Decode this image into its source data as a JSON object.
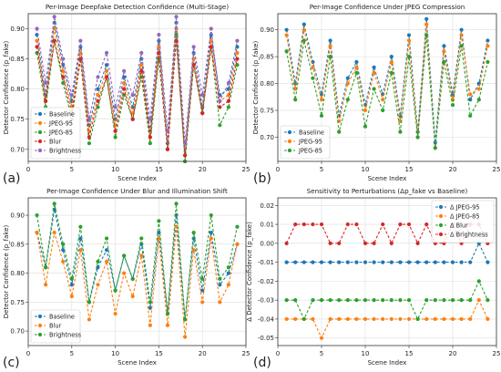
{
  "figure": {
    "panel_letters": [
      "(a)",
      "(b)",
      "(c)",
      "(d)"
    ]
  },
  "chart_data": [
    {
      "type": "line",
      "title": "Per-Image Deepfake Detection Confidence (Multi-Stage)",
      "xlabel": "Scene Index",
      "ylabel": "Detector Confidence (p_fake)",
      "xlim": [
        0,
        25
      ],
      "ylim": [
        0.68,
        0.925
      ],
      "xticks": [
        0,
        5,
        10,
        15,
        20,
        25
      ],
      "yticks": [
        0.7,
        0.75,
        0.8,
        0.85,
        0.9
      ],
      "grid": true,
      "legend": "bottom-left",
      "x": [
        1,
        2,
        3,
        4,
        5,
        6,
        7,
        8,
        9,
        10,
        11,
        12,
        13,
        14,
        15,
        16,
        17,
        18,
        19,
        20,
        21,
        22,
        23,
        24
      ],
      "series": [
        {
          "name": "Baseline",
          "color": "#1f77b4",
          "values": [
            0.89,
            0.79,
            0.91,
            0.84,
            0.78,
            0.87,
            0.74,
            0.8,
            0.84,
            0.75,
            0.82,
            0.77,
            0.85,
            0.73,
            0.88,
            0.71,
            0.91,
            0.69,
            0.86,
            0.77,
            0.89,
            0.79,
            0.8,
            0.87
          ]
        },
        {
          "name": "JPEG-95",
          "color": "#ff7f0e",
          "values": [
            0.88,
            0.78,
            0.9,
            0.83,
            0.77,
            0.86,
            0.73,
            0.79,
            0.83,
            0.74,
            0.81,
            0.76,
            0.84,
            0.72,
            0.87,
            0.7,
            0.9,
            0.68,
            0.85,
            0.76,
            0.88,
            0.78,
            0.79,
            0.86
          ]
        },
        {
          "name": "JPEG-85",
          "color": "#2ca02c",
          "values": [
            0.86,
            0.77,
            0.88,
            0.81,
            0.75,
            0.85,
            0.71,
            0.77,
            0.82,
            0.72,
            0.79,
            0.75,
            0.82,
            0.71,
            0.85,
            0.7,
            0.89,
            0.68,
            0.84,
            0.76,
            0.87,
            0.74,
            0.77,
            0.84
          ]
        },
        {
          "name": "Blur",
          "color": "#d62728",
          "values": [
            0.87,
            0.78,
            0.88,
            0.82,
            0.76,
            0.85,
            0.72,
            0.78,
            0.82,
            0.73,
            0.8,
            0.75,
            0.83,
            0.72,
            0.86,
            0.7,
            0.88,
            0.69,
            0.84,
            0.76,
            0.87,
            0.77,
            0.78,
            0.85
          ]
        },
        {
          "name": "Brightness",
          "color": "#9467bd",
          "values": [
            0.9,
            0.81,
            0.92,
            0.85,
            0.79,
            0.88,
            0.75,
            0.82,
            0.86,
            0.77,
            0.83,
            0.79,
            0.86,
            0.75,
            0.89,
            0.73,
            0.92,
            0.71,
            0.87,
            0.79,
            0.9,
            0.78,
            0.81,
            0.88
          ]
        }
      ]
    },
    {
      "type": "line",
      "title": "Per-Image Confidence Under JPEG Compression",
      "xlabel": "Scene Index",
      "ylabel": "Detector Confidence (p_fake)",
      "xlim": [
        0,
        25
      ],
      "ylim": [
        0.655,
        0.93
      ],
      "xticks": [
        0,
        5,
        10,
        15,
        20,
        25
      ],
      "yticks": [
        0.7,
        0.75,
        0.8,
        0.85,
        0.9
      ],
      "grid": true,
      "legend": "bottom-left",
      "x": [
        1,
        2,
        3,
        4,
        5,
        6,
        7,
        8,
        9,
        10,
        11,
        12,
        13,
        14,
        15,
        16,
        17,
        18,
        19,
        20,
        21,
        22,
        23,
        24
      ],
      "series": [
        {
          "name": "Baseline",
          "color": "#1f77b4",
          "values": [
            0.9,
            0.8,
            0.91,
            0.84,
            0.78,
            0.88,
            0.74,
            0.81,
            0.84,
            0.76,
            0.83,
            0.78,
            0.85,
            0.74,
            0.89,
            0.71,
            0.92,
            0.69,
            0.87,
            0.78,
            0.9,
            0.77,
            0.8,
            0.88
          ]
        },
        {
          "name": "JPEG-95",
          "color": "#ff7f0e",
          "values": [
            0.89,
            0.79,
            0.9,
            0.83,
            0.77,
            0.87,
            0.73,
            0.8,
            0.83,
            0.75,
            0.82,
            0.77,
            0.84,
            0.73,
            0.88,
            0.7,
            0.91,
            0.68,
            0.86,
            0.77,
            0.89,
            0.78,
            0.79,
            0.87
          ]
        },
        {
          "name": "JPEG-85",
          "color": "#2ca02c",
          "values": [
            0.86,
            0.77,
            0.88,
            0.81,
            0.74,
            0.85,
            0.71,
            0.77,
            0.82,
            0.72,
            0.79,
            0.75,
            0.82,
            0.71,
            0.85,
            0.7,
            0.89,
            0.68,
            0.84,
            0.76,
            0.87,
            0.74,
            0.77,
            0.84
          ]
        }
      ]
    },
    {
      "type": "line",
      "title": "Per-Image Confidence Under Blur and Illumination Shift",
      "xlabel": "Scene Index",
      "ylabel": "Detector Confidence (p_fake)",
      "xlim": [
        0,
        25
      ],
      "ylim": [
        0.675,
        0.93
      ],
      "xticks": [
        0,
        5,
        10,
        15,
        20,
        25
      ],
      "yticks": [
        0.7,
        0.75,
        0.8,
        0.85,
        0.9
      ],
      "grid": true,
      "legend": "bottom-left",
      "x": [
        1,
        2,
        3,
        4,
        5,
        6,
        7,
        8,
        9,
        10,
        11,
        12,
        13,
        14,
        15,
        16,
        17,
        18,
        19,
        20,
        21,
        22,
        23,
        24
      ],
      "series": [
        {
          "name": "Baseline",
          "color": "#1f77b4",
          "values": [
            0.87,
            0.81,
            0.91,
            0.84,
            0.78,
            0.86,
            0.75,
            0.81,
            0.84,
            0.77,
            0.83,
            0.79,
            0.85,
            0.74,
            0.87,
            0.73,
            0.9,
            0.72,
            0.86,
            0.77,
            0.87,
            0.78,
            0.8,
            0.85
          ]
        },
        {
          "name": "Blur",
          "color": "#ff7f0e",
          "values": [
            0.87,
            0.78,
            0.87,
            0.82,
            0.76,
            0.84,
            0.72,
            0.78,
            0.82,
            0.73,
            0.8,
            0.76,
            0.83,
            0.71,
            0.86,
            0.71,
            0.88,
            0.69,
            0.84,
            0.75,
            0.86,
            0.75,
            0.78,
            0.85
          ]
        },
        {
          "name": "Brightness",
          "color": "#2ca02c",
          "values": [
            0.9,
            0.81,
            0.92,
            0.85,
            0.79,
            0.88,
            0.75,
            0.82,
            0.86,
            0.77,
            0.83,
            0.79,
            0.86,
            0.75,
            0.89,
            0.73,
            0.92,
            0.72,
            0.87,
            0.79,
            0.9,
            0.79,
            0.81,
            0.88
          ]
        }
      ]
    },
    {
      "type": "line",
      "title": "Sensitivity to Perturbations (Δp_fake vs Baseline)",
      "xlabel": "Scene Index",
      "ylabel": "Δ Detector Confidence (p_fake)",
      "xlim": [
        0,
        25
      ],
      "ylim": [
        -0.054,
        0.024
      ],
      "xticks": [
        0,
        5,
        10,
        15,
        20,
        25
      ],
      "yticks": [
        -0.05,
        -0.04,
        -0.03,
        -0.02,
        -0.01,
        0.0,
        0.01,
        0.02
      ],
      "grid": true,
      "legend": "top-right",
      "x": [
        1,
        2,
        3,
        4,
        5,
        6,
        7,
        8,
        9,
        10,
        11,
        12,
        13,
        14,
        15,
        16,
        17,
        18,
        19,
        20,
        21,
        22,
        23,
        24
      ],
      "series": [
        {
          "name": "Δ JPEG-95",
          "color": "#1f77b4",
          "values": [
            -0.01,
            -0.01,
            -0.01,
            -0.01,
            -0.01,
            -0.01,
            -0.01,
            -0.01,
            -0.01,
            -0.01,
            -0.01,
            -0.01,
            -0.01,
            -0.01,
            -0.01,
            -0.01,
            -0.01,
            -0.01,
            -0.01,
            -0.01,
            -0.01,
            -0.01,
            0.0,
            -0.01
          ]
        },
        {
          "name": "Δ JPEG-85",
          "color": "#ff7f0e",
          "values": [
            -0.04,
            -0.04,
            -0.04,
            -0.04,
            -0.05,
            -0.04,
            -0.04,
            -0.04,
            -0.04,
            -0.04,
            -0.04,
            -0.04,
            -0.04,
            -0.04,
            -0.04,
            -0.04,
            -0.04,
            -0.04,
            -0.04,
            -0.04,
            -0.04,
            -0.04,
            -0.03,
            -0.04
          ]
        },
        {
          "name": "Δ Blur",
          "color": "#2ca02c",
          "values": [
            -0.03,
            -0.03,
            -0.04,
            -0.03,
            -0.03,
            -0.03,
            -0.03,
            -0.03,
            -0.03,
            -0.03,
            -0.03,
            -0.03,
            -0.03,
            -0.03,
            -0.03,
            -0.04,
            -0.03,
            -0.03,
            -0.03,
            -0.03,
            -0.03,
            -0.03,
            -0.02,
            -0.03
          ]
        },
        {
          "name": "Δ Brightness",
          "color": "#d62728",
          "values": [
            0.0,
            0.01,
            0.01,
            0.01,
            0.01,
            0.0,
            0.0,
            0.01,
            0.01,
            0.0,
            0.0,
            0.01,
            0.0,
            0.01,
            0.01,
            0.0,
            0.01,
            0.0,
            0.0,
            0.01,
            0.0,
            0.01,
            0.01,
            0.0
          ]
        }
      ]
    }
  ]
}
